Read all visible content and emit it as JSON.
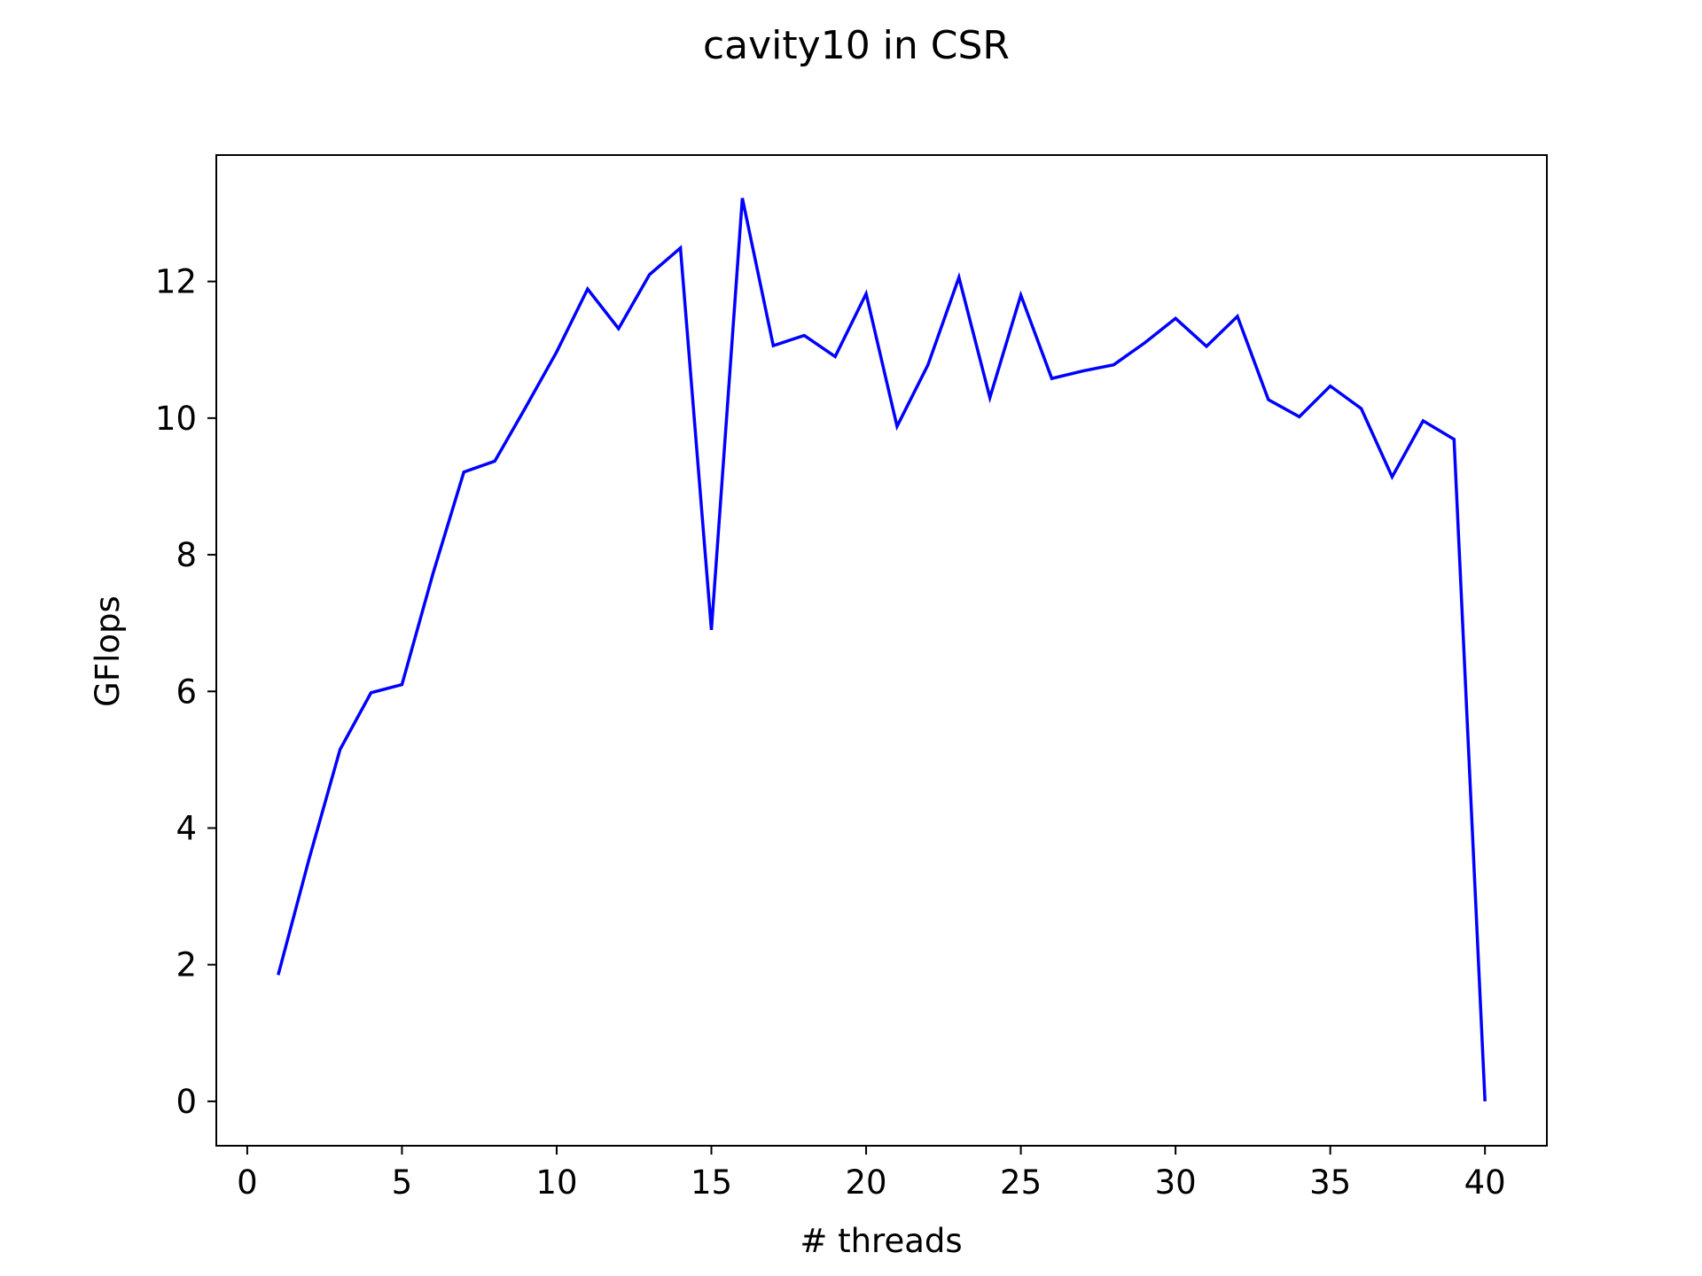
{
  "chart_data": {
    "type": "line",
    "title": "cavity10 in CSR",
    "xlabel": "# threads",
    "ylabel": "GFlops",
    "xlim": [
      -1,
      42
    ],
    "ylim": [
      -0.65,
      13.85
    ],
    "xticks": [
      0,
      5,
      10,
      15,
      20,
      25,
      30,
      35,
      40
    ],
    "yticks": [
      0,
      2,
      4,
      6,
      8,
      10,
      12
    ],
    "xtick_labels": [
      "0",
      "5",
      "10",
      "15",
      "20",
      "25",
      "30",
      "35",
      "40"
    ],
    "ytick_labels": [
      "0",
      "2",
      "4",
      "6",
      "8",
      "10",
      "12"
    ],
    "grid": false,
    "line_color": "#0000ff",
    "series": [
      {
        "x": [
          1,
          2,
          3,
          4,
          5,
          6,
          7,
          8,
          9,
          10,
          11,
          12,
          13,
          14,
          15,
          16,
          17,
          18,
          19,
          20,
          21,
          22,
          23,
          24,
          25,
          26,
          27,
          28,
          29,
          30,
          31,
          32,
          33,
          34,
          35,
          36,
          37,
          38,
          39,
          40
        ],
        "values": [
          1.85,
          3.55,
          5.15,
          5.98,
          6.1,
          7.72,
          9.21,
          9.37,
          10.16,
          10.97,
          11.89,
          11.31,
          12.1,
          12.49,
          6.9,
          13.22,
          11.06,
          11.21,
          10.9,
          11.82,
          9.88,
          10.78,
          12.06,
          10.3,
          11.8,
          10.58,
          10.69,
          10.78,
          11.1,
          11.46,
          11.05,
          11.49,
          10.27,
          10.02,
          10.47,
          10.14,
          9.14,
          9.96,
          9.69,
          0.0
        ]
      }
    ]
  }
}
